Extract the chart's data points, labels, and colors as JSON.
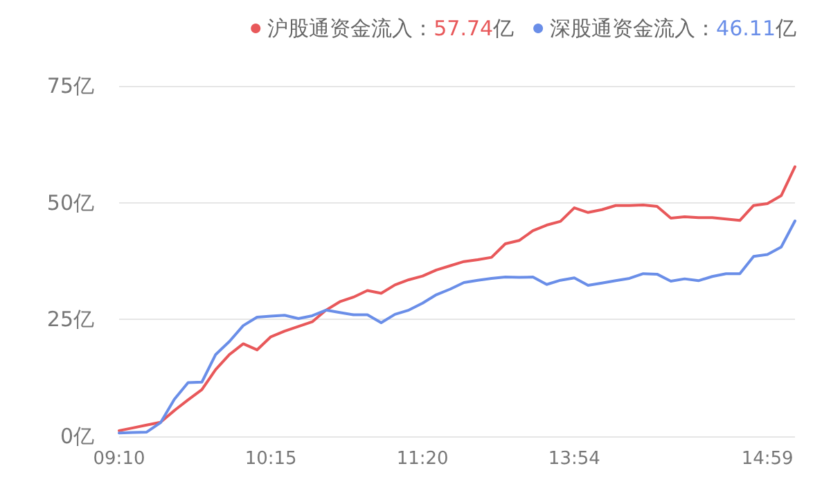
{
  "chart_data": {
    "type": "line",
    "categories": [
      "09:10",
      null,
      null,
      null,
      null,
      null,
      null,
      null,
      null,
      null,
      null,
      "10:15",
      null,
      null,
      null,
      null,
      null,
      null,
      null,
      null,
      null,
      null,
      "11:20",
      null,
      null,
      null,
      null,
      null,
      null,
      null,
      null,
      null,
      null,
      "13:54",
      null,
      null,
      null,
      null,
      null,
      null,
      null,
      null,
      null,
      null,
      null,
      null,
      null,
      "14:59",
      null,
      null
    ],
    "series": [
      {
        "name": "沪股通资金流入：57.74亿",
        "color": "#e8585a",
        "values": [
          1.2,
          1.8,
          2.4,
          3,
          5.5,
          7.8,
          10,
          14.3,
          17.5,
          19.8,
          18.5,
          21.3,
          22.5,
          23.5,
          24.5,
          27,
          28.8,
          29.8,
          31.2,
          30.6,
          32.4,
          33.5,
          34.3,
          35.6,
          36.5,
          37.4,
          37.8,
          38.3,
          41.2,
          41.9,
          44,
          45.2,
          46,
          48.9,
          47.9,
          48.5,
          49.4,
          49.4,
          49.5,
          49.2,
          46.7,
          47,
          46.8,
          46.8,
          46.5,
          46.2,
          49.4,
          49.8,
          51.5,
          57.7
        ]
      },
      {
        "name": "深股通资金流入：46.11亿",
        "color": "#6a8ee8",
        "values": [
          0.7,
          0.8,
          0.9,
          2.9,
          7.9,
          11.5,
          11.6,
          17.5,
          20.3,
          23.7,
          25.5,
          25.7,
          25.9,
          25.2,
          25.8,
          27,
          26.5,
          26,
          26,
          24.3,
          26.1,
          27,
          28.5,
          30.3,
          31.5,
          32.9,
          33.4,
          33.8,
          34.1,
          34,
          34.1,
          32.5,
          33.4,
          33.9,
          32.3,
          32.8,
          33.3,
          33.8,
          34.8,
          34.7,
          33.2,
          33.7,
          33.3,
          34.2,
          34.8,
          34.8,
          38.5,
          38.9,
          40.5,
          46.1
        ]
      }
    ],
    "ylim": [
      0,
      75
    ],
    "yticks": [
      {
        "value": 0,
        "label": "0亿"
      },
      {
        "value": 25,
        "label": "25亿"
      },
      {
        "value": 50,
        "label": "50亿"
      },
      {
        "value": 75,
        "label": "75亿"
      }
    ],
    "grid": "y",
    "legend": "top right",
    "marker": "none",
    "line_style": "solid"
  }
}
